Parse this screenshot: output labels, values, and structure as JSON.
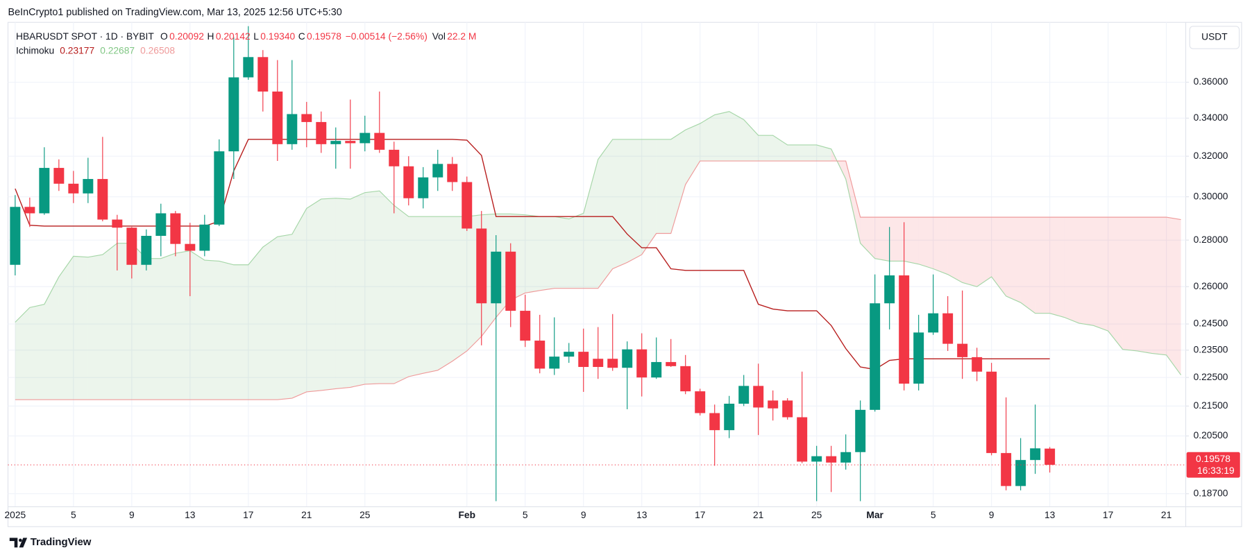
{
  "header": {
    "published": "BeInCrypto1 published on TradingView.com, Mar 13, 2025 12:56 UTC+5:30"
  },
  "legend": {
    "symbol": "HBARUSDT SPOT · 1D · BYBIT",
    "o_label": "O",
    "o_value": "0.20092",
    "h_label": "H",
    "h_value": "0.20142",
    "l_label": "L",
    "l_value": "0.19340",
    "c_label": "C",
    "c_value": "0.19578",
    "change": "−0.00514 (−2.56%)",
    "vol_label": "Vol",
    "vol_value": "22.2 M",
    "value_color": "#f23645"
  },
  "currency_button": "USDT",
  "footer": {
    "brand": "TradingView"
  },
  "chart_data": {
    "type": "candlestick",
    "up_color": "#089981",
    "down_color": "#f23645",
    "log_scale": true,
    "grid": true,
    "xlim": [
      "2025-01-01",
      "2025-03-22"
    ],
    "ylim": [
      0.182,
      0.395
    ],
    "yticks": [
      {
        "value": 0.187,
        "label": "0.18700"
      },
      {
        "value": 0.205,
        "label": "0.20500"
      },
      {
        "value": 0.215,
        "label": "0.21500"
      },
      {
        "value": 0.225,
        "label": "0.22500"
      },
      {
        "value": 0.235,
        "label": "0.23500"
      },
      {
        "value": 0.245,
        "label": "0.24500"
      },
      {
        "value": 0.26,
        "label": "0.26000"
      },
      {
        "value": 0.28,
        "label": "0.28000"
      },
      {
        "value": 0.3,
        "label": "0.30000"
      },
      {
        "value": 0.32,
        "label": "0.32000"
      },
      {
        "value": 0.34,
        "label": "0.34000"
      },
      {
        "value": 0.36,
        "label": "0.36000"
      }
    ],
    "xticks": [
      {
        "value": "2025-01-01",
        "label": "2025"
      },
      {
        "value": "2025-01-05",
        "label": "5"
      },
      {
        "value": "2025-01-09",
        "label": "9"
      },
      {
        "value": "2025-01-13",
        "label": "13"
      },
      {
        "value": "2025-01-17",
        "label": "17"
      },
      {
        "value": "2025-01-21",
        "label": "21"
      },
      {
        "value": "2025-01-25",
        "label": "25"
      },
      {
        "value": "2025-02-01",
        "label": "Feb"
      },
      {
        "value": "2025-02-05",
        "label": "5"
      },
      {
        "value": "2025-02-09",
        "label": "9"
      },
      {
        "value": "2025-02-13",
        "label": "13"
      },
      {
        "value": "2025-02-17",
        "label": "17"
      },
      {
        "value": "2025-02-21",
        "label": "21"
      },
      {
        "value": "2025-02-25",
        "label": "25"
      },
      {
        "value": "2025-03-01",
        "label": "Mar"
      },
      {
        "value": "2025-03-05",
        "label": "5"
      },
      {
        "value": "2025-03-09",
        "label": "9"
      },
      {
        "value": "2025-03-13",
        "label": "13"
      },
      {
        "value": "2025-03-17",
        "label": "17"
      },
      {
        "value": "2025-03-21",
        "label": "21"
      }
    ],
    "candles": {
      "x": [
        "2025-01-01",
        "2025-01-02",
        "2025-01-03",
        "2025-01-04",
        "2025-01-05",
        "2025-01-06",
        "2025-01-07",
        "2025-01-08",
        "2025-01-09",
        "2025-01-10",
        "2025-01-11",
        "2025-01-12",
        "2025-01-13",
        "2025-01-14",
        "2025-01-15",
        "2025-01-16",
        "2025-01-17",
        "2025-01-18",
        "2025-01-19",
        "2025-01-20",
        "2025-01-21",
        "2025-01-22",
        "2025-01-23",
        "2025-01-24",
        "2025-01-25",
        "2025-01-26",
        "2025-01-27",
        "2025-01-28",
        "2025-01-29",
        "2025-01-30",
        "2025-01-31",
        "2025-02-01",
        "2025-02-02",
        "2025-02-03",
        "2025-02-04",
        "2025-02-05",
        "2025-02-06",
        "2025-02-07",
        "2025-02-08",
        "2025-02-09",
        "2025-02-10",
        "2025-02-11",
        "2025-02-12",
        "2025-02-13",
        "2025-02-14",
        "2025-02-15",
        "2025-02-16",
        "2025-02-17",
        "2025-02-18",
        "2025-02-19",
        "2025-02-20",
        "2025-02-21",
        "2025-02-22",
        "2025-02-23",
        "2025-02-24",
        "2025-02-25",
        "2025-02-26",
        "2025-02-27",
        "2025-02-28",
        "2025-03-01",
        "2025-03-02",
        "2025-03-03",
        "2025-03-04",
        "2025-03-05",
        "2025-03-06",
        "2025-03-07",
        "2025-03-08",
        "2025-03-09",
        "2025-03-10",
        "2025-03-11",
        "2025-03-12",
        "2025-03-13"
      ],
      "open": [
        0.2692,
        0.2952,
        0.2922,
        0.3141,
        0.3063,
        0.3016,
        0.3086,
        0.2893,
        0.2856,
        0.2692,
        0.2819,
        0.2922,
        0.2783,
        0.2753,
        0.287,
        0.3225,
        0.3628,
        0.3747,
        0.3547,
        0.3262,
        0.3422,
        0.3379,
        0.3262,
        0.3279,
        0.3267,
        0.3321,
        0.3233,
        0.3149,
        0.2993,
        0.3094,
        0.3161,
        0.3071,
        0.2852,
        0.2532,
        0.2749,
        0.2502,
        0.2386,
        0.2282,
        0.2326,
        0.2344,
        0.2318,
        0.2318,
        0.2285,
        0.2353,
        0.225,
        0.2306,
        0.2291,
        0.2201,
        0.2126,
        0.2069,
        0.2158,
        0.222,
        0.2169,
        0.2169,
        0.2112,
        0.1968,
        0.1985,
        0.1965,
        0.1998,
        0.2137,
        0.2532,
        0.2647,
        0.2228,
        0.2417,
        0.2492,
        0.2374,
        0.2324,
        0.2271,
        0.1995,
        0.1893,
        0.1973,
        0.20092
      ],
      "high": [
        0.3008,
        0.2996,
        0.3246,
        0.3184,
        0.3126,
        0.3192,
        0.33,
        0.2915,
        0.2859,
        0.2848,
        0.2967,
        0.2933,
        0.2878,
        0.2915,
        0.3287,
        0.3867,
        0.3936,
        0.3789,
        0.3729,
        0.3729,
        0.3489,
        0.3436,
        0.335,
        0.3502,
        0.3413,
        0.3547,
        0.3275,
        0.32,
        0.3145,
        0.3233,
        0.3196,
        0.3098,
        0.2933,
        0.2822,
        0.2786,
        0.2567,
        0.2486,
        0.2476,
        0.2377,
        0.2432,
        0.2438,
        0.2489,
        0.2383,
        0.2414,
        0.2398,
        0.2392,
        0.2332,
        0.221,
        0.2155,
        0.2185,
        0.2259,
        0.23,
        0.2204,
        0.2177,
        0.2271,
        0.2018,
        0.2018,
        0.2055,
        0.2169,
        0.2651,
        0.2859,
        0.2881,
        0.2486,
        0.2651,
        0.2561,
        0.2584,
        0.2359,
        0.2303,
        0.218,
        0.2043,
        0.2155,
        0.20142
      ],
      "low": [
        0.2647,
        0.2859,
        0.2915,
        0.3028,
        0.297,
        0.297,
        0.2885,
        0.2668,
        0.2634,
        0.2668,
        0.2729,
        0.2729,
        0.2561,
        0.2729,
        0.2863,
        0.3086,
        0.3614,
        0.3436,
        0.3176,
        0.3233,
        0.3246,
        0.3217,
        0.3137,
        0.3137,
        0.3225,
        0.3217,
        0.2922,
        0.2959,
        0.2945,
        0.3028,
        0.3028,
        0.2841,
        0.2368,
        0.1848,
        0.2438,
        0.2362,
        0.2265,
        0.2259,
        0.2303,
        0.2199,
        0.2245,
        0.2274,
        0.2139,
        0.2183,
        0.2245,
        0.2288,
        0.2191,
        0.2118,
        0.1955,
        0.2043,
        0.215,
        0.2053,
        0.2101,
        0.2104,
        0.1963,
        0.1848,
        0.1875,
        0.1943,
        0.1848,
        0.2131,
        0.2429,
        0.2204,
        0.2204,
        0.2408,
        0.2347,
        0.2245,
        0.2237,
        0.1988,
        0.188,
        0.188,
        0.193,
        0.1934
      ],
      "close": [
        0.2952,
        0.2922,
        0.3141,
        0.3063,
        0.3016,
        0.3086,
        0.2893,
        0.2856,
        0.2692,
        0.2819,
        0.2922,
        0.2783,
        0.2753,
        0.287,
        0.3225,
        0.3628,
        0.3747,
        0.3547,
        0.3262,
        0.3422,
        0.3379,
        0.3262,
        0.3279,
        0.3267,
        0.3321,
        0.3233,
        0.3149,
        0.2993,
        0.3094,
        0.3161,
        0.3071,
        0.2852,
        0.2532,
        0.2749,
        0.2502,
        0.2386,
        0.2282,
        0.2326,
        0.2344,
        0.2288,
        0.2288,
        0.2285,
        0.2353,
        0.225,
        0.2306,
        0.2291,
        0.2201,
        0.2126,
        0.2069,
        0.2158,
        0.222,
        0.2145,
        0.2142,
        0.2112,
        0.1968,
        0.1985,
        0.1965,
        0.1998,
        0.2137,
        0.2532,
        0.2647,
        0.2228,
        0.2417,
        0.2492,
        0.2374,
        0.2324,
        0.2271,
        0.1995,
        0.1893,
        0.1973,
        0.201,
        0.19578
      ]
    },
    "ichimoku": {
      "label": "Ichimoku",
      "x": [
        "2025-01-01",
        "2025-01-02",
        "2025-01-03",
        "2025-01-04",
        "2025-01-05",
        "2025-01-06",
        "2025-01-07",
        "2025-01-08",
        "2025-01-09",
        "2025-01-10",
        "2025-01-11",
        "2025-01-12",
        "2025-01-13",
        "2025-01-14",
        "2025-01-15",
        "2025-01-16",
        "2025-01-17",
        "2025-01-18",
        "2025-01-19",
        "2025-01-20",
        "2025-01-21",
        "2025-01-22",
        "2025-01-23",
        "2025-01-24",
        "2025-01-25",
        "2025-01-26",
        "2025-01-27",
        "2025-01-28",
        "2025-01-29",
        "2025-01-30",
        "2025-01-31",
        "2025-02-01",
        "2025-02-02",
        "2025-02-03",
        "2025-02-04",
        "2025-02-05",
        "2025-02-06",
        "2025-02-07",
        "2025-02-08",
        "2025-02-09",
        "2025-02-10",
        "2025-02-11",
        "2025-02-12",
        "2025-02-13",
        "2025-02-14",
        "2025-02-15",
        "2025-02-16",
        "2025-02-17",
        "2025-02-18",
        "2025-02-19",
        "2025-02-20",
        "2025-02-21",
        "2025-02-22",
        "2025-02-23",
        "2025-02-24",
        "2025-02-25",
        "2025-02-26",
        "2025-02-27",
        "2025-02-28",
        "2025-03-01",
        "2025-03-02",
        "2025-03-03",
        "2025-03-04",
        "2025-03-05",
        "2025-03-06",
        "2025-03-07",
        "2025-03-08",
        "2025-03-09",
        "2025-03-10",
        "2025-03-11",
        "2025-03-12",
        "2025-03-13",
        "2025-03-14",
        "2025-03-15",
        "2025-03-16",
        "2025-03-17",
        "2025-03-18",
        "2025-03-19",
        "2025-03-20",
        "2025-03-21",
        "2025-03-22"
      ],
      "base_line": {
        "color": "#b71c1c",
        "legend_value": "0.23177",
        "values": [
          0.3039,
          0.2867,
          0.2863,
          0.2863,
          0.2863,
          0.2863,
          0.2863,
          0.2863,
          0.2863,
          0.2863,
          0.2863,
          0.2863,
          0.2863,
          0.2863,
          0.2885,
          0.3126,
          0.3287,
          0.3287,
          0.3287,
          0.3287,
          0.3287,
          0.3287,
          0.3287,
          0.3287,
          0.3287,
          0.3287,
          0.3287,
          0.3287,
          0.3287,
          0.3287,
          0.3287,
          0.3283,
          0.3204,
          0.2907,
          0.2907,
          0.2907,
          0.2907,
          0.2907,
          0.2907,
          0.2907,
          0.2907,
          0.2907,
          0.2827,
          0.2766,
          0.2766,
          0.2675,
          0.2668,
          0.2668,
          0.2668,
          0.2668,
          0.2668,
          0.2528,
          0.2509,
          0.2502,
          0.2502,
          0.2502,
          0.2444,
          0.2356,
          0.2288,
          0.2279,
          0.2312,
          0.23177,
          0.23177,
          0.23177,
          0.23177,
          0.23177,
          0.23177,
          0.23177,
          0.23177,
          0.23177,
          0.23177,
          0.23177,
          null,
          null,
          null,
          null,
          null,
          null,
          null,
          null,
          null
        ]
      },
      "span_a": {
        "color": "#a5d6a7",
        "legend_color": "#81c784",
        "legend_value": "0.22687",
        "values": [
          0.2457,
          0.2515,
          0.2528,
          0.2641,
          0.2729,
          0.2725,
          0.2736,
          0.2786,
          0.2786,
          0.2719,
          0.2719,
          0.2742,
          0.2753,
          0.2712,
          0.2708,
          0.2692,
          0.2692,
          0.2769,
          0.2815,
          0.2826,
          0.2945,
          0.2989,
          0.2993,
          0.2989,
          0.302,
          0.3028,
          0.2959,
          0.2907,
          0.2907,
          0.2907,
          0.2907,
          0.2907,
          0.2915,
          0.2919,
          0.2919,
          0.2915,
          0.2907,
          0.2907,
          0.2896,
          0.2922,
          0.3184,
          0.3287,
          0.3287,
          0.3287,
          0.3287,
          0.3287,
          0.3337,
          0.3371,
          0.3418,
          0.3436,
          0.3392,
          0.3308,
          0.3308,
          0.3258,
          0.3258,
          0.3258,
          0.3237,
          0.3086,
          0.2786,
          0.2719,
          0.2708,
          0.2708,
          0.2695,
          0.2675,
          0.2651,
          0.2617,
          0.26,
          0.2641,
          0.2561,
          0.2535,
          0.2492,
          0.2492,
          0.2476,
          0.2453,
          0.2444,
          0.2423,
          0.2353,
          0.2347,
          0.2338,
          0.2332,
          0.2259
        ]
      },
      "span_b": {
        "color": "#ef9a9a",
        "legend_color": "#ef9a9a",
        "legend_value": "0.26508",
        "values": [
          0.2172,
          0.2172,
          0.2172,
          0.2172,
          0.2172,
          0.2172,
          0.2172,
          0.2172,
          0.2172,
          0.2172,
          0.2172,
          0.2172,
          0.2172,
          0.2172,
          0.2172,
          0.2172,
          0.2172,
          0.2172,
          0.2172,
          0.2177,
          0.2199,
          0.2204,
          0.221,
          0.2215,
          0.2226,
          0.2228,
          0.2228,
          0.2253,
          0.2265,
          0.2276,
          0.2309,
          0.2347,
          0.2402,
          0.2476,
          0.2545,
          0.2574,
          0.2584,
          0.2593,
          0.2593,
          0.2593,
          0.2593,
          0.2675,
          0.2702,
          0.2736,
          0.283,
          0.283,
          0.3059,
          0.3176,
          0.3176,
          0.3176,
          0.3176,
          0.3176,
          0.3176,
          0.3176,
          0.3176,
          0.3176,
          0.3176,
          0.3176,
          0.2904,
          0.2904,
          0.2904,
          0.2904,
          0.2904,
          0.2904,
          0.2904,
          0.2904,
          0.2904,
          0.2904,
          0.2904,
          0.2904,
          0.2904,
          0.2904,
          0.2904,
          0.2904,
          0.2904,
          0.2904,
          0.2904,
          0.2904,
          0.2904,
          0.2904,
          0.2893
        ]
      },
      "cloud_up_fill": "rgba(67,160,71,0.10)",
      "cloud_down_fill": "rgba(242,54,69,0.12)"
    },
    "last_price": {
      "value": 0.19578,
      "label": "0.19578",
      "countdown": "16:33:19",
      "color": "#f23645"
    }
  }
}
